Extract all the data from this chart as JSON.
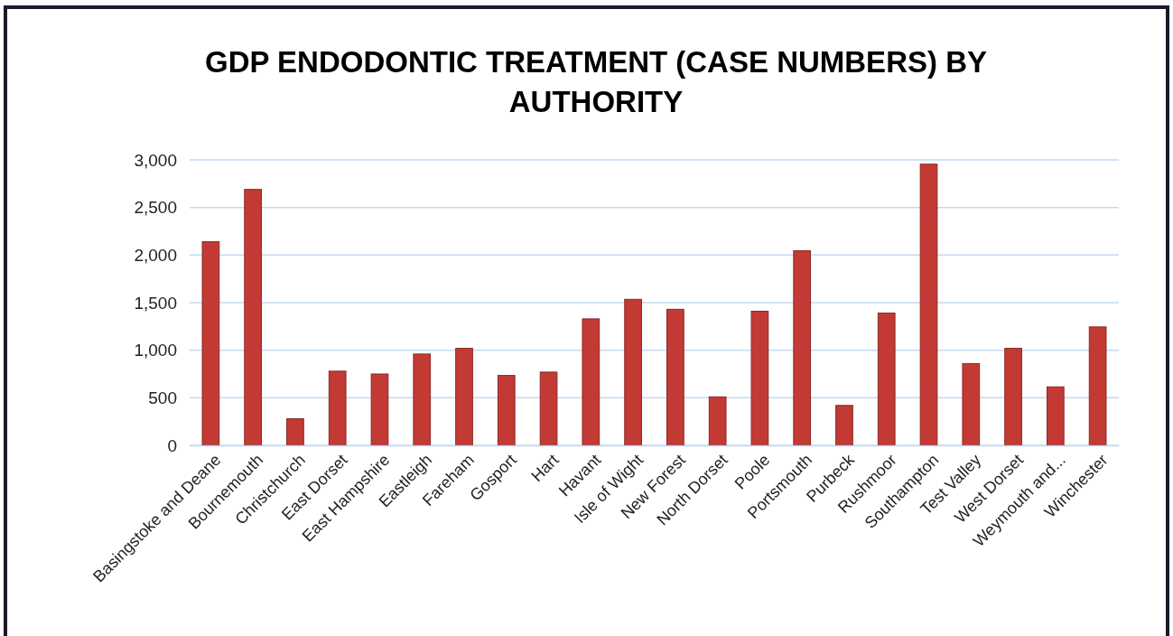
{
  "chart_data": {
    "type": "bar",
    "title": "GDP ENDODONTIC TREATMENT (CASE NUMBERS) BY AUTHORITY",
    "categories": [
      "Basingstoke and Deane",
      "Bournemouth",
      "Christchurch",
      "East Dorset",
      "East Hampshire",
      "Eastleigh",
      "Fareham",
      "Gosport",
      "Hart",
      "Havant",
      "Isle of Wight",
      "New Forest",
      "North Dorset",
      "Poole",
      "Portsmouth",
      "Purbeck",
      "Rushmoor",
      "Southampton",
      "Test Valley",
      "West Dorset",
      "Weymouth and...",
      "Winchester"
    ],
    "values": [
      2140,
      2690,
      280,
      780,
      750,
      960,
      1020,
      735,
      770,
      1330,
      1535,
      1430,
      510,
      1410,
      2045,
      420,
      1390,
      2955,
      860,
      1020,
      615,
      1245
    ],
    "color": "#c33a35",
    "ylim": [
      0,
      3000
    ],
    "yticks": [
      {
        "value": 0,
        "label": "0"
      },
      {
        "value": 500,
        "label": "500"
      },
      {
        "value": 1000,
        "label": "1,000"
      },
      {
        "value": 1500,
        "label": "1,500"
      },
      {
        "value": 2000,
        "label": "2,000"
      },
      {
        "value": 2500,
        "label": "2,500"
      },
      {
        "value": 3000,
        "label": "3,000"
      }
    ],
    "grid": "y"
  }
}
